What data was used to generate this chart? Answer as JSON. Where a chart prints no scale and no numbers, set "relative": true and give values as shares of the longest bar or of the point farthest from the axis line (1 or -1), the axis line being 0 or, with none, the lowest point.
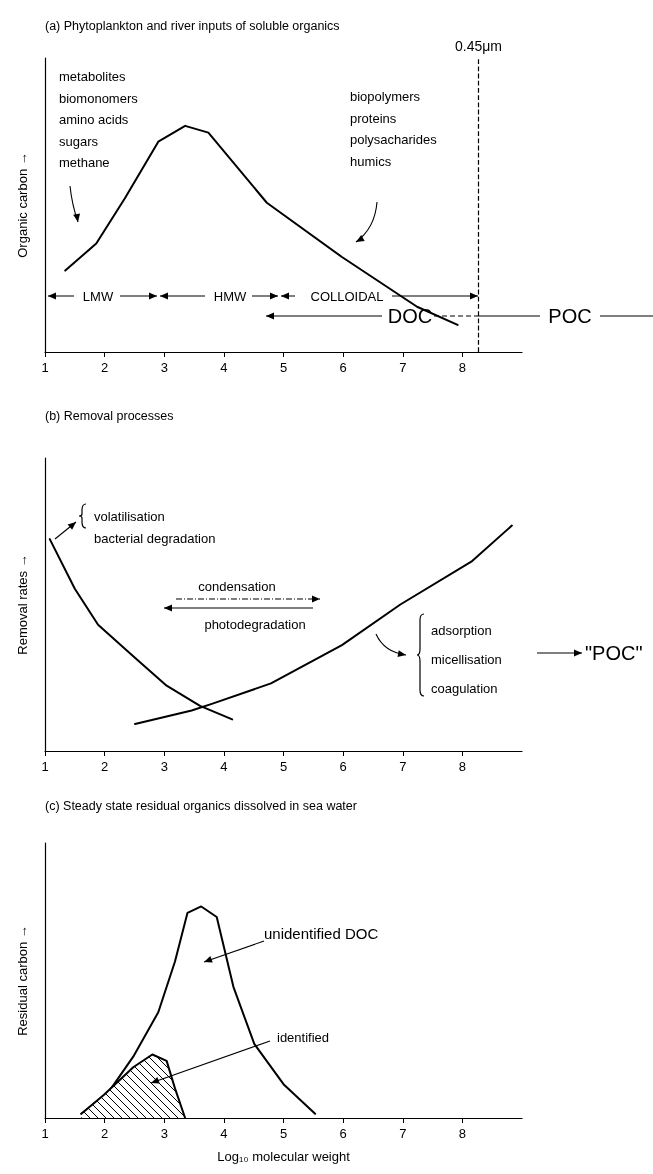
{
  "chart_data": [
    {
      "type": "line",
      "title": "(a) Phytoplankton and river inputs of soluble organics",
      "ylabel": "Organic carbon →",
      "relative": true,
      "xlim": [
        1,
        9
      ],
      "xticks": [
        1,
        2,
        3,
        4,
        5,
        6,
        7,
        8
      ],
      "marker": "none",
      "series": [
        {
          "color": "#000000",
          "x": [
            1.34,
            1.86,
            2.34,
            2.9,
            3.35,
            3.74,
            4.72,
            5.98,
            7.24,
            7.92
          ],
          "values": [
            0.36,
            0.48,
            0.68,
            0.93,
            1.0,
            0.97,
            0.66,
            0.42,
            0.2,
            0.12
          ]
        }
      ],
      "ref_lines": [
        {
          "axis": "x",
          "value": 8.27,
          "label": "0.45μm",
          "line_style": "dashed",
          "color": "#000000"
        }
      ],
      "annotations": [
        "metabolites\nbiomonomers\namino acids\nsugars\nmethane",
        "biopolymers\nproteins\npolysacharides\nhumics",
        "LMW",
        "HMW",
        "COLLOIDAL",
        "DOC",
        "POC"
      ]
    },
    {
      "type": "line",
      "title": "(b) Removal processes",
      "ylabel": "Removal rates →",
      "relative": true,
      "xlim": [
        1,
        9
      ],
      "xticks": [
        1,
        2,
        3,
        4,
        5,
        6,
        7,
        8
      ],
      "marker": "none",
      "series": [
        {
          "color": "#000000",
          "x": [
            1.08,
            1.5,
            1.89,
            2.48,
            3.04,
            3.6,
            4.14
          ],
          "values": [
            0.94,
            0.72,
            0.56,
            0.42,
            0.29,
            0.2,
            0.14
          ]
        },
        {
          "color": "#000000",
          "x": [
            2.51,
            3.46,
            3.81,
            4.79,
            5.98,
            6.96,
            8.15,
            8.83
          ],
          "values": [
            0.12,
            0.18,
            0.21,
            0.3,
            0.47,
            0.65,
            0.84,
            1.0
          ]
        }
      ],
      "annotations": [
        "volatilisation\nbacterial degradation",
        "condensation",
        "photodegradation",
        "adsorption\nmicellisation\ncoagulation",
        "\"POC\""
      ]
    },
    {
      "type": "line",
      "title": "(c) Steady state residual organics dissolved in sea water",
      "xlabel": "Log₁₀ molecular weight",
      "ylabel": "Residual carbon →",
      "relative": true,
      "xlim": [
        1,
        9
      ],
      "xticks": [
        1,
        2,
        3,
        4,
        5,
        6,
        7,
        8
      ],
      "marker": "none",
      "series": [
        {
          "color": "#000000",
          "x": [
            1.61,
            2.06,
            2.48,
            2.9,
            3.18,
            3.39,
            3.62,
            3.88,
            4.16,
            4.51,
            5.0,
            5.53
          ],
          "values": [
            0.02,
            0.12,
            0.29,
            0.5,
            0.74,
            0.97,
            1.0,
            0.95,
            0.62,
            0.35,
            0.16,
            0.02
          ]
        },
        {
          "type": "area",
          "color": "#000000",
          "x": [
            1.61,
            1.99,
            2.48,
            2.8,
            3.04,
            3.18,
            3.35
          ],
          "values": [
            0.02,
            0.11,
            0.24,
            0.3,
            0.27,
            0.14,
            0
          ]
        }
      ],
      "annotations": [
        "unidentified DOC",
        "identified"
      ]
    }
  ]
}
